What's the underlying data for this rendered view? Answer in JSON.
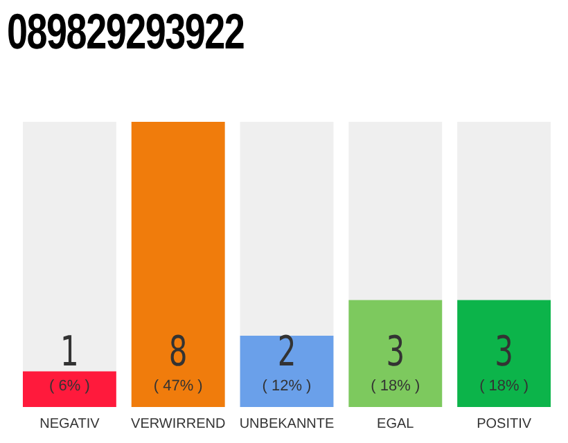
{
  "chart_data": {
    "type": "bar",
    "title": "089829293922",
    "categories": [
      "NEGATIV",
      "VERWIRREND",
      "UNBEKANNTE",
      "EGAL",
      "POSITIV"
    ],
    "values": [
      1,
      8,
      2,
      3,
      3
    ],
    "colors": [
      "#ff1a3c",
      "#f07c0c",
      "#6aa0ea",
      "#7dc95e",
      "#0cb44a"
    ],
    "ylim": [
      0,
      8
    ],
    "tick_labels": "x",
    "grid": false,
    "legend": false,
    "data_labels": true,
    "annotations": [
      "( 6% )",
      "( 47% )",
      "( 12% )",
      "( 18% )",
      "( 18% )"
    ]
  }
}
